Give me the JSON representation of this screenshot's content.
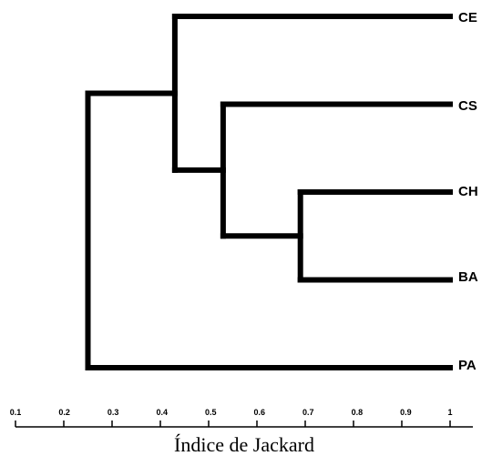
{
  "dendrogram": {
    "leaves": [
      "CE",
      "CS",
      "CH",
      "BA",
      "PA"
    ],
    "merges": [
      {
        "id": "m1",
        "children": [
          "CH",
          "BA"
        ],
        "height": 0.69
      },
      {
        "id": "m2",
        "children": [
          "CS",
          "m1"
        ],
        "height": 0.53
      },
      {
        "id": "m3",
        "children": [
          "CE",
          "m2"
        ],
        "height": 0.43
      },
      {
        "id": "m4",
        "children": [
          "m3",
          "PA"
        ],
        "height": 0.25
      }
    ],
    "leaf_height": 1
  },
  "axis": {
    "title": "Índice de Jackard",
    "ticks": [
      "0.1",
      "0.2",
      "0.3",
      "0.4",
      "0.5",
      "0.6",
      "0.7",
      "0.8",
      "0.9",
      "1"
    ],
    "range": [
      0.1,
      1.0
    ]
  }
}
